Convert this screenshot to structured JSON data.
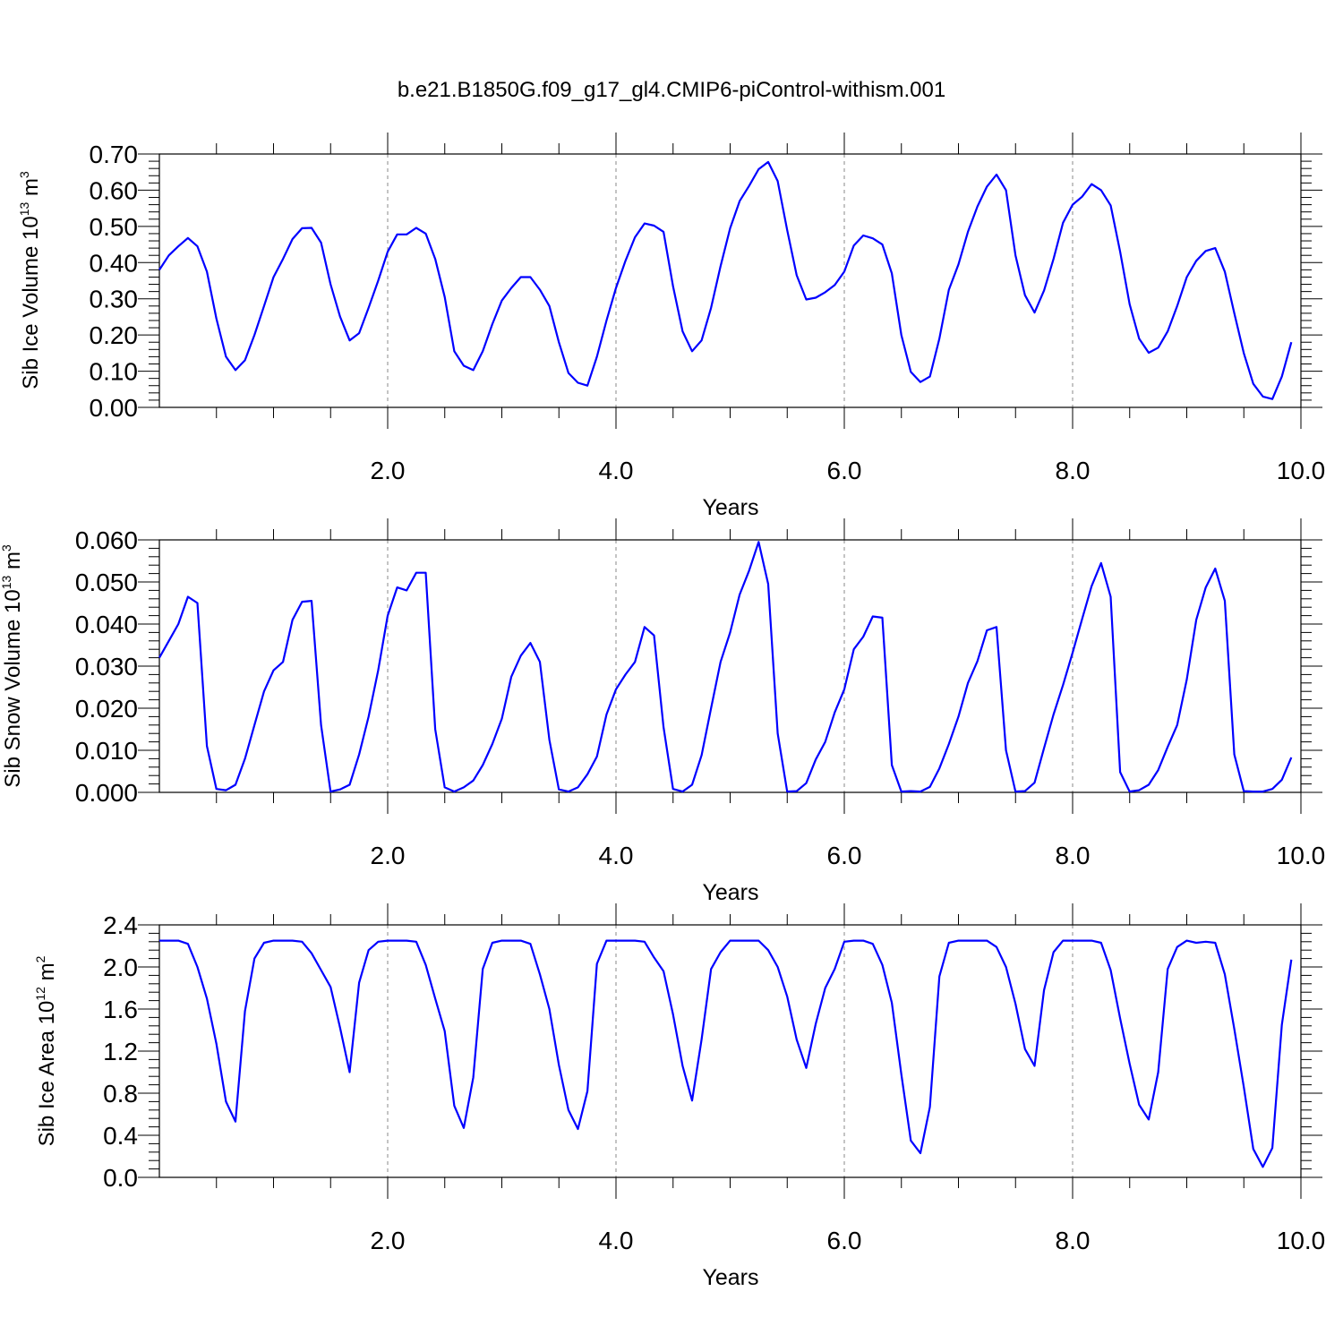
{
  "title": "b.e21.B1850G.f09_g17_gl4.CMIP6-piControl-withism.001",
  "colors": {
    "series": "#0000ff",
    "grid": "#888888",
    "axes": "#000000"
  },
  "chart_data": [
    {
      "type": "line",
      "ylabel_main": "Sib Ice Volume 10",
      "ylabel_exp": "13",
      "ylabel_unit": " m",
      "ylabel_unit_exp": "3",
      "xlabel": "Years",
      "xlim": [
        0.0,
        10.0
      ],
      "ylim": [
        0.0,
        0.7
      ],
      "x_ticks": [
        "2.0",
        "4.0",
        "6.0",
        "8.0",
        "10.0"
      ],
      "y_ticks": [
        "0.00",
        "0.10",
        "0.20",
        "0.30",
        "0.40",
        "0.50",
        "0.60",
        "0.70"
      ],
      "grid": "dashed vertical at major x ticks",
      "x_start": 0.0,
      "x_step": 0.08333,
      "values": [
        0.38,
        0.42,
        0.445,
        0.468,
        0.445,
        0.375,
        0.245,
        0.14,
        0.103,
        0.13,
        0.2,
        0.28,
        0.36,
        0.41,
        0.465,
        0.495,
        0.496,
        0.455,
        0.34,
        0.25,
        0.185,
        0.205,
        0.275,
        0.35,
        0.43,
        0.478,
        0.478,
        0.496,
        0.48,
        0.41,
        0.305,
        0.155,
        0.115,
        0.103,
        0.155,
        0.23,
        0.295,
        0.33,
        0.36,
        0.36,
        0.325,
        0.28,
        0.18,
        0.095,
        0.068,
        0.06,
        0.14,
        0.24,
        0.33,
        0.405,
        0.47,
        0.508,
        0.502,
        0.485,
        0.335,
        0.21,
        0.155,
        0.185,
        0.275,
        0.39,
        0.495,
        0.57,
        0.612,
        0.658,
        0.678,
        0.625,
        0.49,
        0.365,
        0.298,
        0.303,
        0.318,
        0.338,
        0.375,
        0.447,
        0.475,
        0.467,
        0.45,
        0.37,
        0.2,
        0.098,
        0.07,
        0.085,
        0.19,
        0.325,
        0.395,
        0.485,
        0.555,
        0.61,
        0.643,
        0.6,
        0.42,
        0.31,
        0.262,
        0.323,
        0.41,
        0.51,
        0.56,
        0.582,
        0.617,
        0.6,
        0.558,
        0.43,
        0.285,
        0.19,
        0.151,
        0.165,
        0.21,
        0.28,
        0.36,
        0.405,
        0.432,
        0.44,
        0.375,
        0.26,
        0.15,
        0.065,
        0.03,
        0.023,
        0.085,
        0.18
      ]
    },
    {
      "type": "line",
      "ylabel_main": "Sib Snow Volume 10",
      "ylabel_exp": "13",
      "ylabel_unit": " m",
      "ylabel_unit_exp": "3",
      "xlabel": "Years",
      "xlim": [
        0.0,
        10.0
      ],
      "ylim": [
        0.0,
        0.06
      ],
      "x_ticks": [
        "2.0",
        "4.0",
        "6.0",
        "8.0",
        "10.0"
      ],
      "y_ticks": [
        "0.000",
        "0.010",
        "0.020",
        "0.030",
        "0.040",
        "0.050",
        "0.060"
      ],
      "grid": "dashed vertical at major x ticks",
      "x_start": 0.0,
      "x_step": 0.08333,
      "values": [
        0.032,
        0.036,
        0.04,
        0.0465,
        0.045,
        0.011,
        0.0008,
        0.0005,
        0.0018,
        0.008,
        0.016,
        0.024,
        0.029,
        0.031,
        0.041,
        0.0453,
        0.0455,
        0.016,
        0.0002,
        0.0007,
        0.0018,
        0.009,
        0.018,
        0.029,
        0.042,
        0.0487,
        0.048,
        0.0522,
        0.0522,
        0.015,
        0.0012,
        0.0002,
        0.0012,
        0.0028,
        0.0065,
        0.0115,
        0.0175,
        0.0275,
        0.0325,
        0.0355,
        0.031,
        0.0125,
        0.0007,
        0.0002,
        0.0012,
        0.0043,
        0.0085,
        0.0185,
        0.0245,
        0.028,
        0.031,
        0.0393,
        0.0373,
        0.0155,
        0.0008,
        0.0002,
        0.0018,
        0.0088,
        0.02,
        0.031,
        0.038,
        0.047,
        0.0527,
        0.0595,
        0.0495,
        0.014,
        0.0002,
        0.0003,
        0.0022,
        0.0078,
        0.012,
        0.019,
        0.0245,
        0.034,
        0.037,
        0.0418,
        0.0415,
        0.0065,
        0.0002,
        0.0003,
        0.0002,
        0.0013,
        0.0057,
        0.0115,
        0.018,
        0.026,
        0.0312,
        0.0385,
        0.0393,
        0.01,
        0.0002,
        0.0003,
        0.0023,
        0.0105,
        0.0185,
        0.0255,
        0.0332,
        0.0412,
        0.049,
        0.0545,
        0.0465,
        0.0048,
        0.0002,
        0.0005,
        0.0018,
        0.0053,
        0.0108,
        0.016,
        0.0268,
        0.041,
        0.0487,
        0.0532,
        0.0455,
        0.009,
        0.0003,
        0.0002,
        0.0002,
        0.0008,
        0.003,
        0.0083
      ]
    },
    {
      "type": "line",
      "ylabel_main": "Sib Ice Area 10",
      "ylabel_exp": "12",
      "ylabel_unit": " m",
      "ylabel_unit_exp": "2",
      "xlabel": "Years",
      "xlim": [
        0.0,
        10.0
      ],
      "ylim": [
        0.0,
        2.4
      ],
      "x_ticks": [
        "2.0",
        "4.0",
        "6.0",
        "8.0",
        "10.0"
      ],
      "y_ticks": [
        "0.0",
        "0.4",
        "0.8",
        "1.2",
        "1.6",
        "2.0",
        "2.4"
      ],
      "grid": "dashed vertical at major x ticks",
      "x_start": 0.0,
      "x_step": 0.08333,
      "values": [
        2.25,
        2.25,
        2.25,
        2.22,
        2.0,
        1.7,
        1.27,
        0.72,
        0.53,
        1.58,
        2.08,
        2.23,
        2.25,
        2.25,
        2.25,
        2.24,
        2.13,
        1.97,
        1.81,
        1.42,
        1.0,
        1.85,
        2.16,
        2.24,
        2.25,
        2.25,
        2.25,
        2.24,
        2.02,
        1.7,
        1.39,
        0.68,
        0.47,
        0.95,
        1.98,
        2.23,
        2.25,
        2.25,
        2.25,
        2.22,
        1.93,
        1.6,
        1.07,
        0.64,
        0.46,
        0.82,
        2.03,
        2.25,
        2.25,
        2.25,
        2.25,
        2.24,
        2.09,
        1.96,
        1.55,
        1.06,
        0.73,
        1.31,
        1.98,
        2.14,
        2.25,
        2.25,
        2.25,
        2.25,
        2.16,
        2.0,
        1.72,
        1.31,
        1.04,
        1.46,
        1.8,
        1.98,
        2.24,
        2.25,
        2.25,
        2.22,
        2.02,
        1.66,
        0.98,
        0.35,
        0.23,
        0.67,
        1.91,
        2.23,
        2.25,
        2.25,
        2.25,
        2.25,
        2.19,
        2.0,
        1.65,
        1.22,
        1.06,
        1.78,
        2.14,
        2.25,
        2.25,
        2.25,
        2.25,
        2.23,
        1.97,
        1.51,
        1.08,
        0.69,
        0.55,
        1.0,
        1.98,
        2.19,
        2.25,
        2.23,
        2.24,
        2.23,
        1.93,
        1.41,
        0.86,
        0.27,
        0.1,
        0.28,
        1.45,
        2.07
      ]
    }
  ]
}
